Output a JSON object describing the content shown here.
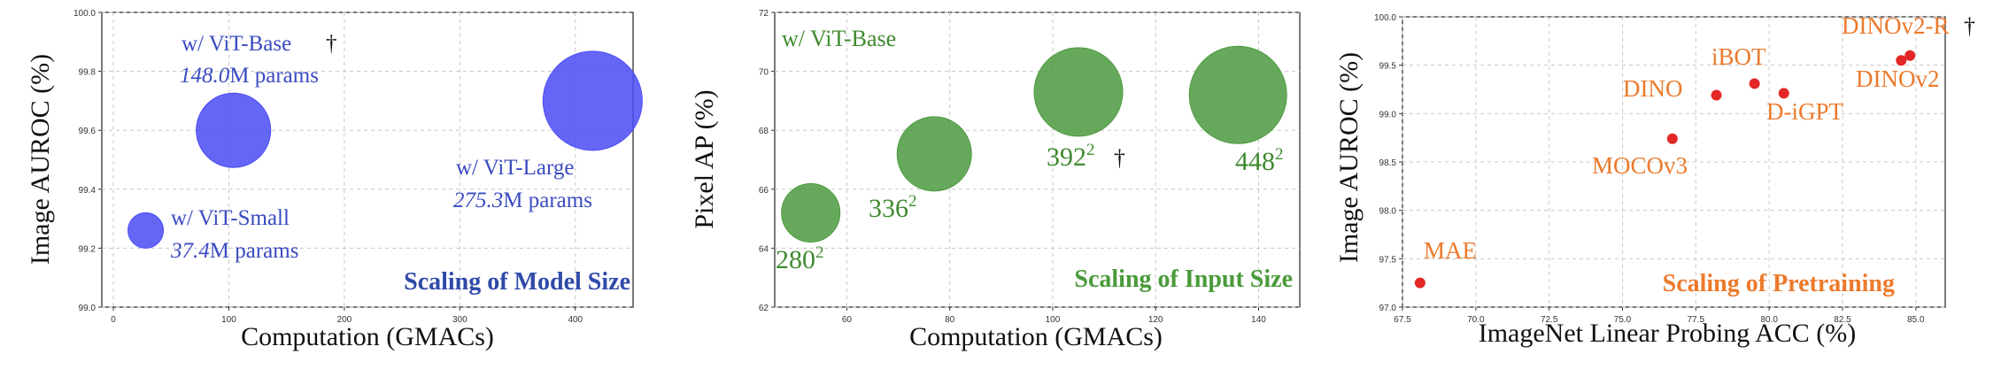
{
  "charts": {
    "model_size": {
      "type": "scatter",
      "subtitle": "Scaling of Model Size",
      "xlabel": "Computation (GMACs)",
      "ylabel": "Image AUROC (%)",
      "xlim": [
        -10,
        450
      ],
      "ylim": [
        99.0,
        100.0
      ],
      "xticks": [
        "0",
        "100",
        "200",
        "300",
        "400"
      ],
      "yticks": [
        "99.0",
        "99.2",
        "99.4",
        "99.6",
        "99.8",
        "100.0"
      ],
      "grid": true,
      "color": "#4b4bf5",
      "text_color": "#3a4bc0",
      "subtitle_color": "#2f4aa8",
      "points": [
        {
          "x": 28,
          "y": 99.26,
          "label": "w/ ViT-Small",
          "params_num": "37.4",
          "params_unit": "M params",
          "mark": ""
        },
        {
          "x": 104,
          "y": 99.6,
          "label": "w/ ViT-Base",
          "params_num": "148.0",
          "params_unit": "M params",
          "mark": "†"
        },
        {
          "x": 415,
          "y": 99.7,
          "label": "w/ ViT-Large",
          "params_num": "275.3",
          "params_unit": "M params",
          "mark": ""
        }
      ]
    },
    "input_size": {
      "type": "scatter",
      "subtitle": "Scaling of Input Size",
      "legend_text": "w/ ViT-Base",
      "xlabel": "Computation (GMACs)",
      "ylabel": "Pixel AP (%)",
      "xlim": [
        46,
        148
      ],
      "ylim": [
        62,
        72
      ],
      "xticks": [
        "60",
        "80",
        "100",
        "120",
        "140"
      ],
      "yticks": [
        "62",
        "64",
        "66",
        "68",
        "70",
        "72"
      ],
      "grid": true,
      "color": "#4c9a3f",
      "text_color": "#3f8a2f",
      "points": [
        {
          "x": 53,
          "y": 65.2,
          "label": "280",
          "sup": "2",
          "mark": ""
        },
        {
          "x": 77,
          "y": 67.2,
          "label": "336",
          "sup": "2",
          "mark": ""
        },
        {
          "x": 105,
          "y": 69.3,
          "label": "392",
          "sup": "2",
          "mark": "†"
        },
        {
          "x": 136,
          "y": 69.2,
          "label": "448",
          "sup": "2",
          "mark": ""
        }
      ]
    },
    "pretraining": {
      "type": "scatter",
      "subtitle": "Scaling of Pretraining",
      "xlabel": "ImageNet Linear Probing ACC (%)",
      "ylabel": "Image AUROC (%)",
      "xlim": [
        67.5,
        86
      ],
      "ylim": [
        97.0,
        100.0
      ],
      "xticks": [
        "67.5",
        "70.0",
        "72.5",
        "75.0",
        "77.5",
        "80.0",
        "82.5",
        "85.0"
      ],
      "yticks": [
        "97.0",
        "97.5",
        "98.0",
        "98.5",
        "99.0",
        "99.5",
        "100.0"
      ],
      "grid": true,
      "color": "#e32727",
      "text_color": "#ec7a2c",
      "points": [
        {
          "x": 68.1,
          "y": 97.25,
          "label": "MAE",
          "mark": ""
        },
        {
          "x": 76.7,
          "y": 98.74,
          "label": "MOCOv3",
          "mark": ""
        },
        {
          "x": 78.2,
          "y": 99.19,
          "label": "DINO",
          "mark": ""
        },
        {
          "x": 79.5,
          "y": 99.31,
          "label": "iBOT",
          "mark": ""
        },
        {
          "x": 80.5,
          "y": 99.21,
          "label": "D-iGPT",
          "mark": ""
        },
        {
          "x": 84.5,
          "y": 99.55,
          "label": "DINOv2",
          "mark": ""
        },
        {
          "x": 84.8,
          "y": 99.6,
          "label": "DINOv2-R",
          "mark": "†"
        }
      ]
    }
  }
}
